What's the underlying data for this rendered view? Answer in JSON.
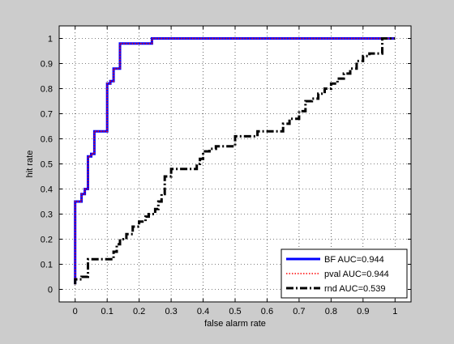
{
  "chart_data": {
    "type": "line",
    "title": "",
    "xlabel": "false alarm rate",
    "ylabel": "hit rate",
    "xlim": [
      -0.05,
      1.05
    ],
    "ylim": [
      -0.05,
      1.05
    ],
    "xticks": [
      0,
      0.1,
      0.2,
      0.3,
      0.4,
      0.5,
      0.6,
      0.7,
      0.8,
      0.9,
      1
    ],
    "yticks": [
      0,
      0.1,
      0.2,
      0.3,
      0.4,
      0.5,
      0.6,
      0.7,
      0.8,
      0.9,
      1
    ],
    "xtick_labels": [
      "0",
      "0.1",
      "0.2",
      "0.3",
      "0.4",
      "0.5",
      "0.6",
      "0.7",
      "0.8",
      "0.9",
      "1"
    ],
    "ytick_labels": [
      "0",
      "0.1",
      "0.2",
      "0.3",
      "0.4",
      "0.5",
      "0.6",
      "0.7",
      "0.8",
      "0.9",
      "1"
    ],
    "grid": true,
    "legend_position": "bottom-right",
    "background": "#cccccc",
    "plot_background": "#ffffff",
    "series": [
      {
        "name": "BF AUC=0.944",
        "color": "#0000ff",
        "style": "solid",
        "x": [
          0,
          0,
          0.02,
          0.02,
          0.03,
          0.03,
          0.04,
          0.04,
          0.05,
          0.05,
          0.06,
          0.06,
          0.1,
          0.1,
          0.11,
          0.11,
          0.12,
          0.12,
          0.14,
          0.14,
          0.24,
          0.24,
          1
        ],
        "y": [
          0.02,
          0.35,
          0.35,
          0.38,
          0.38,
          0.4,
          0.4,
          0.53,
          0.53,
          0.54,
          0.54,
          0.63,
          0.63,
          0.82,
          0.82,
          0.83,
          0.83,
          0.88,
          0.88,
          0.98,
          0.98,
          1.0,
          1.0
        ]
      },
      {
        "name": "pval AUC=0.944",
        "color": "#ff0000",
        "style": "dotted",
        "x": [
          0,
          0,
          0.02,
          0.02,
          0.03,
          0.03,
          0.04,
          0.04,
          0.05,
          0.05,
          0.06,
          0.06,
          0.1,
          0.1,
          0.11,
          0.11,
          0.12,
          0.12,
          0.14,
          0.14,
          0.24,
          0.24,
          1
        ],
        "y": [
          0.02,
          0.35,
          0.35,
          0.38,
          0.38,
          0.4,
          0.4,
          0.53,
          0.53,
          0.54,
          0.54,
          0.63,
          0.63,
          0.82,
          0.82,
          0.83,
          0.83,
          0.88,
          0.88,
          0.98,
          0.98,
          1.0,
          1.0
        ]
      },
      {
        "name": "rnd AUC=0.539",
        "color": "#000000",
        "style": "dashdot",
        "x": [
          0,
          0,
          0.02,
          0.02,
          0.04,
          0.04,
          0.12,
          0.12,
          0.13,
          0.13,
          0.14,
          0.14,
          0.16,
          0.16,
          0.18,
          0.18,
          0.2,
          0.2,
          0.22,
          0.22,
          0.23,
          0.23,
          0.25,
          0.25,
          0.26,
          0.26,
          0.27,
          0.27,
          0.28,
          0.28,
          0.3,
          0.3,
          0.38,
          0.38,
          0.39,
          0.39,
          0.4,
          0.4,
          0.42,
          0.42,
          0.44,
          0.44,
          0.5,
          0.5,
          0.57,
          0.57,
          0.65,
          0.65,
          0.67,
          0.67,
          0.7,
          0.7,
          0.72,
          0.72,
          0.74,
          0.74,
          0.76,
          0.76,
          0.78,
          0.78,
          0.8,
          0.8,
          0.82,
          0.82,
          0.84,
          0.84,
          0.86,
          0.86,
          0.88,
          0.88,
          0.9,
          0.9,
          0.92,
          0.92,
          0.96,
          0.96,
          1
        ],
        "y": [
          0.02,
          0.04,
          0.04,
          0.05,
          0.05,
          0.12,
          0.12,
          0.15,
          0.15,
          0.18,
          0.18,
          0.2,
          0.2,
          0.22,
          0.22,
          0.25,
          0.25,
          0.27,
          0.27,
          0.29,
          0.29,
          0.3,
          0.3,
          0.32,
          0.32,
          0.35,
          0.35,
          0.38,
          0.38,
          0.45,
          0.45,
          0.48,
          0.48,
          0.5,
          0.5,
          0.52,
          0.52,
          0.55,
          0.55,
          0.56,
          0.56,
          0.57,
          0.57,
          0.61,
          0.61,
          0.63,
          0.63,
          0.66,
          0.66,
          0.68,
          0.68,
          0.71,
          0.71,
          0.75,
          0.75,
          0.76,
          0.76,
          0.78,
          0.78,
          0.8,
          0.8,
          0.82,
          0.82,
          0.84,
          0.84,
          0.86,
          0.86,
          0.88,
          0.88,
          0.91,
          0.91,
          0.93,
          0.93,
          0.94,
          0.94,
          1.0,
          1.0
        ]
      }
    ]
  }
}
